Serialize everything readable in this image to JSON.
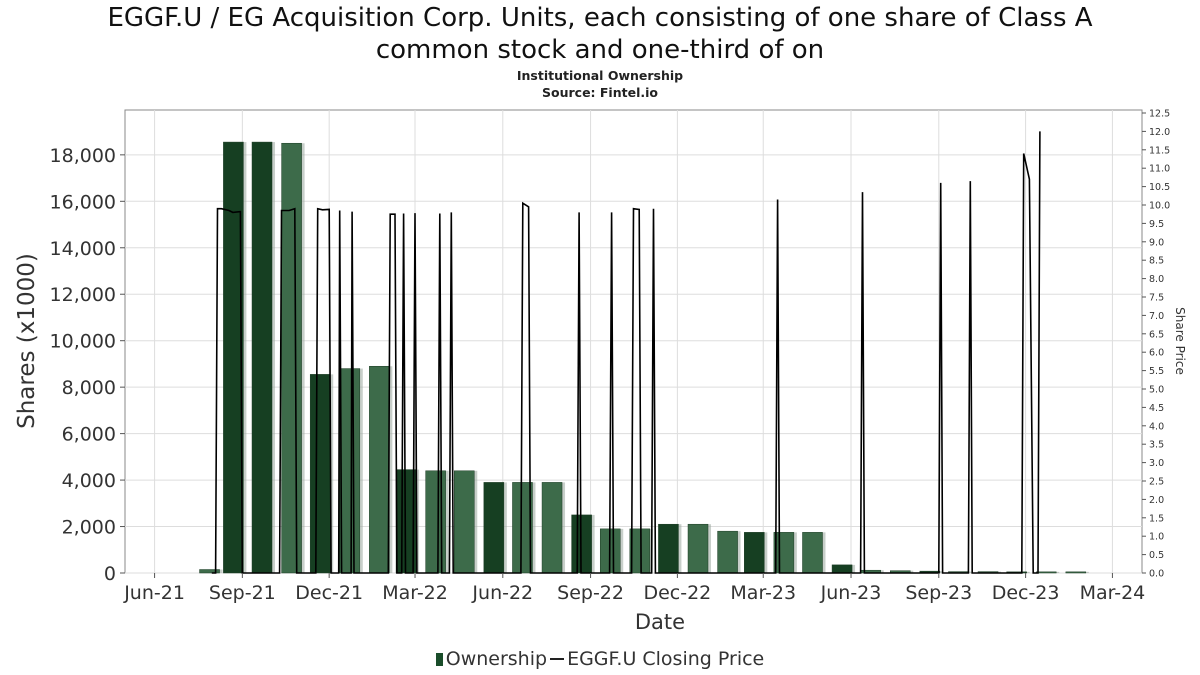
{
  "title_line1": "EGGF.U / EG Acquisition Corp. Units, each consisting of one share of Class A",
  "title_line2": "common stock and one-third of on",
  "subtitle1": "Institutional Ownership",
  "subtitle2": "Source: Fintel.io",
  "legend": {
    "ownership": "Ownership",
    "price": "EGGF.U Closing Price"
  },
  "colors": {
    "bar_dark": "#163f22",
    "bar_light": "#3d6b4a",
    "line": "#000000",
    "grid": "#dddddd"
  },
  "chart_data": {
    "type": "bar",
    "xlabel": "Date",
    "ylabel": "Shares (x1000)",
    "y2label": "Share Price",
    "x_ticks": [
      "Jun-21",
      "Sep-21",
      "Dec-21",
      "Mar-22",
      "Jun-22",
      "Sep-22",
      "Dec-22",
      "Mar-23",
      "Jun-23",
      "Sep-23",
      "Dec-23",
      "Mar-24"
    ],
    "ylim": [
      0,
      19500
    ],
    "y_ticks": [
      0,
      2000,
      4000,
      6000,
      8000,
      10000,
      12000,
      14000,
      16000,
      18000
    ],
    "y2lim": [
      0,
      12.5
    ],
    "y2_ticks": [
      "0.0",
      "0.5",
      "1.0",
      "1.5",
      "2.0",
      "2.5",
      "3.0",
      "3.5",
      "4.0",
      "4.5",
      "5.0",
      "5.5",
      "6.0",
      "6.5",
      "7.0",
      "7.5",
      "8.0",
      "8.5",
      "9.0",
      "9.5",
      "10.0",
      "10.5",
      "11.0",
      "11.5",
      "12.0",
      "12.5"
    ],
    "series": [
      {
        "name": "Ownership",
        "type": "bar",
        "x": [
          "2021-08-06",
          "2021-08-31",
          "2021-09-30",
          "2021-10-31",
          "2021-11-30",
          "2021-12-31",
          "2022-01-31",
          "2022-02-28",
          "2022-03-31",
          "2022-04-30",
          "2022-05-31",
          "2022-06-30",
          "2022-07-31",
          "2022-08-31",
          "2022-09-30",
          "2022-10-31",
          "2022-11-30",
          "2022-12-31",
          "2023-01-31",
          "2023-02-28",
          "2023-03-31",
          "2023-04-30",
          "2023-05-31",
          "2023-06-30",
          "2023-07-31",
          "2023-08-31",
          "2023-09-30",
          "2023-10-31",
          "2023-11-30",
          "2023-12-31",
          "2024-01-31",
          "2024-02-29"
        ],
        "values": [
          150,
          18550,
          18550,
          18500,
          8550,
          8800,
          8900,
          4450,
          4400,
          4400,
          3900,
          3900,
          3900,
          2500,
          1900,
          1900,
          2100,
          2100,
          1800,
          1750,
          1750,
          1750,
          350,
          120,
          100,
          80,
          60,
          60,
          50,
          50,
          50,
          0
        ]
      },
      {
        "name": "EGGF.U Closing Price",
        "type": "line",
        "points": [
          [
            "2021-07-31",
            0
          ],
          [
            "2021-08-04",
            0
          ],
          [
            "2021-08-06",
            9.9
          ],
          [
            "2021-08-10",
            9.9
          ],
          [
            "2021-08-18",
            9.85
          ],
          [
            "2021-08-22",
            9.8
          ],
          [
            "2021-08-30",
            9.82
          ],
          [
            "2021-09-01",
            0
          ],
          [
            "2021-10-10",
            0
          ],
          [
            "2021-10-12",
            9.85
          ],
          [
            "2021-10-20",
            9.85
          ],
          [
            "2021-10-26",
            9.9
          ],
          [
            "2021-10-28",
            0
          ],
          [
            "2021-11-17",
            0
          ],
          [
            "2021-11-19",
            9.9
          ],
          [
            "2021-11-24",
            9.87
          ],
          [
            "2021-12-01",
            9.88
          ],
          [
            "2021-12-03",
            0
          ],
          [
            "2021-12-11",
            0
          ],
          [
            "2021-12-12",
            9.85
          ],
          [
            "2021-12-14",
            0
          ],
          [
            "2021-12-24",
            0
          ],
          [
            "2021-12-25",
            9.82
          ],
          [
            "2021-12-27",
            0
          ],
          [
            "2022-02-01",
            0
          ],
          [
            "2022-02-03",
            9.75
          ],
          [
            "2022-02-08",
            9.75
          ],
          [
            "2022-02-10",
            0
          ],
          [
            "2022-02-15",
            0
          ],
          [
            "2022-02-17",
            9.77
          ],
          [
            "2022-02-19",
            0
          ],
          [
            "2022-02-27",
            0
          ],
          [
            "2022-03-01",
            9.78
          ],
          [
            "2022-03-03",
            0
          ],
          [
            "2022-03-25",
            0
          ],
          [
            "2022-03-27",
            9.77
          ],
          [
            "2022-03-29",
            0
          ],
          [
            "2022-04-06",
            0
          ],
          [
            "2022-04-08",
            9.8
          ],
          [
            "2022-04-10",
            0
          ],
          [
            "2022-06-20",
            0
          ],
          [
            "2022-06-22",
            10.05
          ],
          [
            "2022-06-28",
            9.95
          ],
          [
            "2022-06-30",
            0
          ],
          [
            "2022-08-18",
            0
          ],
          [
            "2022-08-20",
            9.8
          ],
          [
            "2022-08-22",
            0
          ],
          [
            "2022-09-21",
            0
          ],
          [
            "2022-09-23",
            9.8
          ],
          [
            "2022-09-25",
            0
          ],
          [
            "2022-10-14",
            0
          ],
          [
            "2022-10-16",
            9.9
          ],
          [
            "2022-10-22",
            9.88
          ],
          [
            "2022-10-24",
            0
          ],
          [
            "2022-11-04",
            0
          ],
          [
            "2022-11-06",
            9.9
          ],
          [
            "2022-11-08",
            0
          ],
          [
            "2023-03-14",
            0
          ],
          [
            "2023-03-16",
            10.15
          ],
          [
            "2023-03-18",
            0
          ],
          [
            "2023-06-11",
            0
          ],
          [
            "2023-06-13",
            10.35
          ],
          [
            "2023-06-15",
            0
          ],
          [
            "2023-09-01",
            0
          ],
          [
            "2023-09-03",
            10.6
          ],
          [
            "2023-09-05",
            0
          ],
          [
            "2023-10-02",
            0
          ],
          [
            "2023-10-04",
            10.65
          ],
          [
            "2023-10-06",
            0
          ],
          [
            "2023-11-27",
            0
          ],
          [
            "2023-11-29",
            11.4
          ],
          [
            "2023-12-05",
            10.7
          ],
          [
            "2023-12-09",
            0
          ],
          [
            "2023-12-14",
            0
          ],
          [
            "2023-12-16",
            12.0
          ]
        ]
      }
    ]
  }
}
